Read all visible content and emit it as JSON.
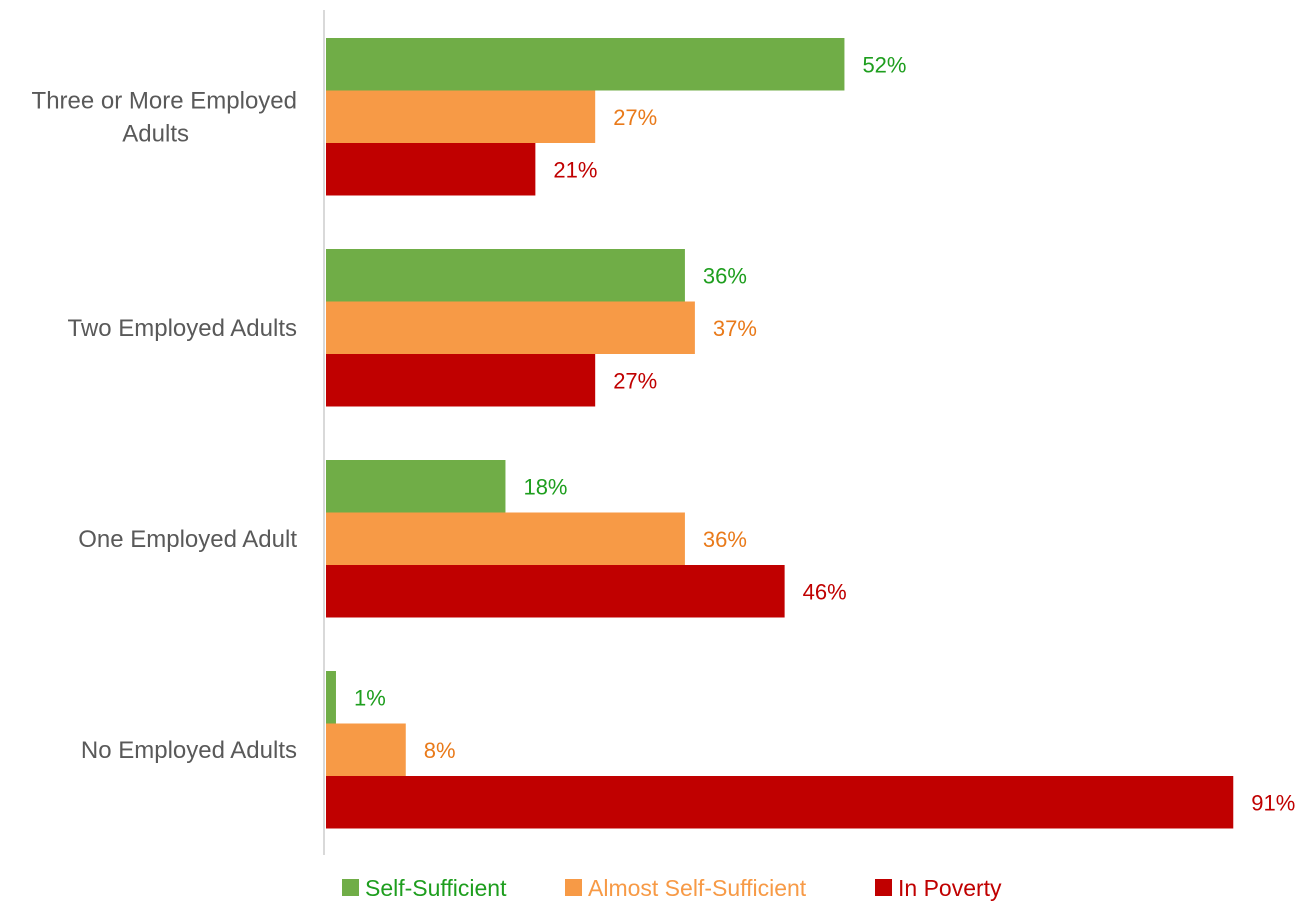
{
  "chart_data": {
    "type": "bar",
    "orientation": "horizontal",
    "categories": [
      [
        "Three or More Employed",
        "Adults"
      ],
      [
        "Two Employed Adults"
      ],
      [
        "One Employed Adult"
      ],
      [
        "No Employed Adults"
      ]
    ],
    "series": [
      {
        "name": "Self-Sufficient",
        "color": "#70AD47",
        "label_color": "#1E9E1E",
        "values": [
          52,
          36,
          18,
          1
        ]
      },
      {
        "name": "Almost Self-Sufficient",
        "color": "#F79A46",
        "label_color": "#E97A1A",
        "values": [
          27,
          37,
          36,
          8
        ]
      },
      {
        "name": "In Poverty",
        "color": "#C00000",
        "label_color": "#C00000",
        "values": [
          21,
          27,
          46,
          91
        ]
      }
    ],
    "value_suffix": "%",
    "xlim": [
      0,
      91
    ],
    "legend": {
      "position": "bottom",
      "label_colors": [
        "#1E9E1E",
        "#F79A46",
        "#C00000"
      ]
    },
    "grid": false
  }
}
